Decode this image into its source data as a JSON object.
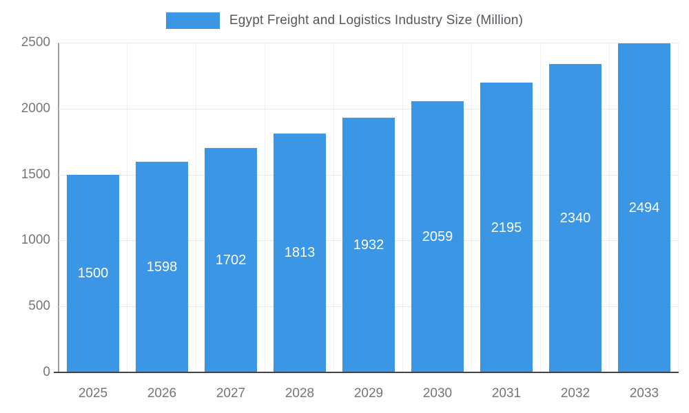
{
  "chart_data": {
    "type": "bar",
    "title": "Egypt Freight and Logistics Industry Size (Million)",
    "categories": [
      "2025",
      "2026",
      "2027",
      "2028",
      "2029",
      "2030",
      "2031",
      "2032",
      "2033"
    ],
    "values": [
      1500,
      1598,
      1702,
      1813,
      1932,
      2059,
      2195,
      2340,
      2494
    ],
    "series": [
      {
        "name": "Egypt Freight and Logistics Industry Size (Million)",
        "values": [
          1500,
          1598,
          1702,
          1813,
          1932,
          2059,
          2195,
          2340,
          2494
        ]
      }
    ],
    "xlabel": "",
    "ylabel": "",
    "ylim": [
      0,
      2500
    ],
    "yticks": [
      0,
      500,
      1000,
      1500,
      2000,
      2500
    ],
    "grid": true,
    "legend_position": "top-center",
    "value_labels": "inside-center",
    "colors": {
      "bar": "#3B97E6",
      "bar_label": "#FFFFFF",
      "axis_text": "#757575",
      "title_text": "#53585F",
      "gridline": "#E8E8E8",
      "vertical_gridline": "#EFEFEF",
      "axis_line": "#9E9E9E",
      "baseline": "#424242",
      "background": "#FFFFFF"
    }
  }
}
